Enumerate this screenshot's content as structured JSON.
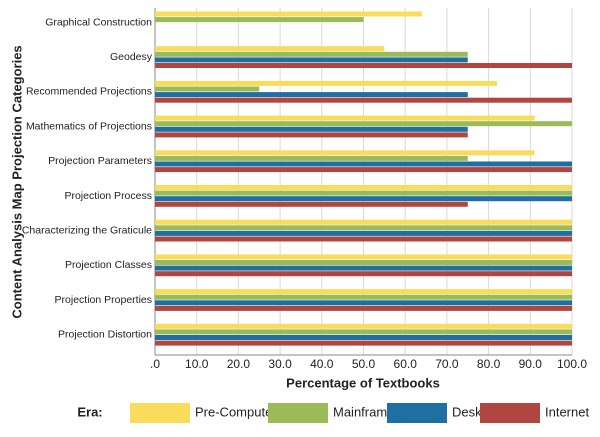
{
  "chart_data": {
    "type": "hbar",
    "x_label": "Percentage of Textbooks",
    "y_label": "Content Analysis Map Projection Categories",
    "legend_title": "Era:",
    "categories": [
      "Graphical Construction",
      "Geodesy",
      "Recommended Projections",
      "Mathematics of Projections",
      "Projection Parameters",
      "Projection Process",
      "Characterizing the Graticule",
      "Projection Classes",
      "Projection Properties",
      "Projection Distortion"
    ],
    "series": [
      {
        "name": "Pre-Computer",
        "color": "#f9dc5c",
        "values": [
          64,
          55,
          82,
          91,
          91,
          100,
          100,
          100,
          100,
          100
        ]
      },
      {
        "name": "Mainframe",
        "color": "#9bbb59",
        "values": [
          50,
          75,
          25,
          100,
          75,
          100,
          100,
          100,
          100,
          100
        ]
      },
      {
        "name": "Desktop",
        "color": "#1f6fa3",
        "values": [
          0,
          75,
          75,
          75,
          100,
          100,
          100,
          100,
          100,
          100
        ]
      },
      {
        "name": "Internet",
        "color": "#b0463f",
        "values": [
          0,
          100,
          100,
          75,
          100,
          75,
          100,
          100,
          100,
          100
        ]
      }
    ],
    "xlim": [
      0,
      100
    ],
    "xticks": [
      {
        "value": 0,
        "label": ".0"
      },
      {
        "value": 10,
        "label": "10.0"
      },
      {
        "value": 20,
        "label": "20.0"
      },
      {
        "value": 30,
        "label": "30.0"
      },
      {
        "value": 40,
        "label": "40.0"
      },
      {
        "value": 50,
        "label": "50.0"
      },
      {
        "value": 60,
        "label": "60.0"
      },
      {
        "value": 70,
        "label": "70.0"
      },
      {
        "value": 80,
        "label": "80.0"
      },
      {
        "value": 90,
        "label": "90.0"
      },
      {
        "value": 100,
        "label": "100.0"
      }
    ],
    "grid": true
  }
}
